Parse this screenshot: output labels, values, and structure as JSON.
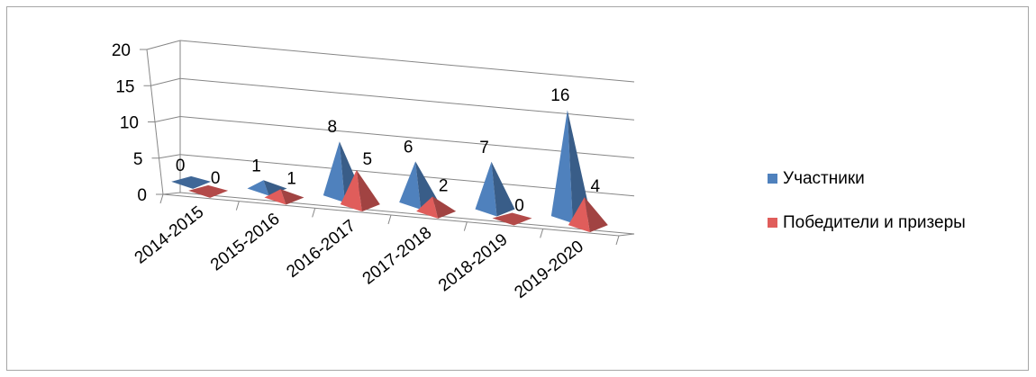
{
  "chart_data": {
    "type": "bar",
    "variant": "3d-pyramid",
    "categories": [
      "2014-2015",
      "2015-2016",
      "2016-2017",
      "2017-2018",
      "2018-2019",
      "2019-2020"
    ],
    "series": [
      {
        "name": "Участники",
        "values": [
          0,
          1,
          8,
          6,
          7,
          16
        ],
        "color": "#4f81bd"
      },
      {
        "name": "Победители и призеры",
        "values": [
          0,
          1,
          5,
          2,
          0,
          4
        ],
        "color": "#e05d5b"
      }
    ],
    "y_ticks": [
      "0",
      "5",
      "10",
      "15",
      "20"
    ],
    "ylim": [
      0,
      20
    ],
    "grid": true,
    "legend_position": "right",
    "data_labels": true
  }
}
